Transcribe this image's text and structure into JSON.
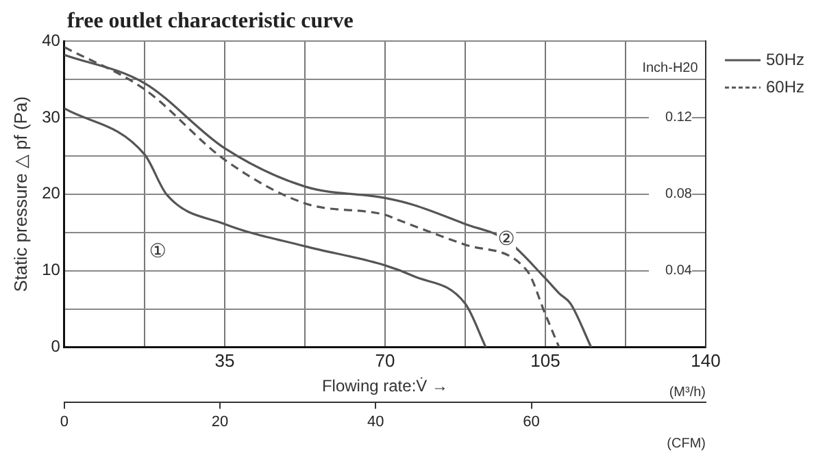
{
  "chart_data": {
    "type": "line",
    "title": "free outlet characteristic curve",
    "xlabel": "Flowing rate:V̇ →",
    "ylabel": "Static pressure △ pf (Pa)",
    "y2label": "Inch-H20",
    "x2label": "(CFM)",
    "annotations": [
      "(M³/h)",
      {
        "text": "①",
        "x": 20.4,
        "y": 12.4
      },
      {
        "text": "②",
        "x": 96.5,
        "y": 14
      }
    ],
    "series": [
      {
        "name": "50Hz",
        "color": "#555555",
        "line_style": "solid",
        "x": [
          0,
          17.5,
          35,
          52.5,
          70,
          76.2,
          87.5,
          96.5,
          105,
          108.1,
          110.5,
          115
        ],
        "values": [
          38.2,
          34.5,
          26,
          21,
          19.5,
          18.6,
          16.1,
          14,
          9,
          7,
          5.7,
          0
        ]
      },
      {
        "name": "60Hz",
        "color": "#555555",
        "line_style": "dashed",
        "x": [
          0,
          17.5,
          35,
          52.5,
          70,
          73,
          87.5,
          101,
          105,
          108
        ],
        "values": [
          39.2,
          33.7,
          24.5,
          18.8,
          17.3,
          16.6,
          13.4,
          10,
          4.3,
          0
        ]
      },
      {
        "color": "#555555",
        "line_style": "solid",
        "x": [
          0,
          17.5,
          22.4,
          35,
          52.5,
          70,
          76.2,
          87.5,
          92
        ],
        "values": [
          31.2,
          25.2,
          19.9,
          16.1,
          13.2,
          10.7,
          9.3,
          5.7,
          0
        ]
      }
    ],
    "xlim": [
      0,
      140
    ],
    "xticks": [
      {
        "value": 0,
        "label": null
      },
      {
        "value": 17.5,
        "label": null
      },
      35,
      {
        "value": 52.5,
        "label": null
      },
      70,
      {
        "value": 87.5,
        "label": null
      },
      105,
      {
        "value": 122.5,
        "label": null
      },
      140
    ],
    "ylim": [
      0,
      40
    ],
    "yticks": [
      0,
      {
        "value": 5,
        "label": null
      },
      10,
      {
        "value": 15,
        "label": null
      },
      20,
      {
        "value": 25,
        "label": null
      },
      30,
      {
        "value": 35,
        "label": null
      },
      40
    ],
    "y2lim": [
      0,
      0.16
    ],
    "y2ticks": [
      0.04,
      0.08,
      0.12
    ],
    "x2lim": [
      0,
      82.4
    ],
    "x2ticks": [
      0,
      20,
      40,
      60
    ],
    "grid": true,
    "legend": "top right",
    "marker": "none"
  }
}
